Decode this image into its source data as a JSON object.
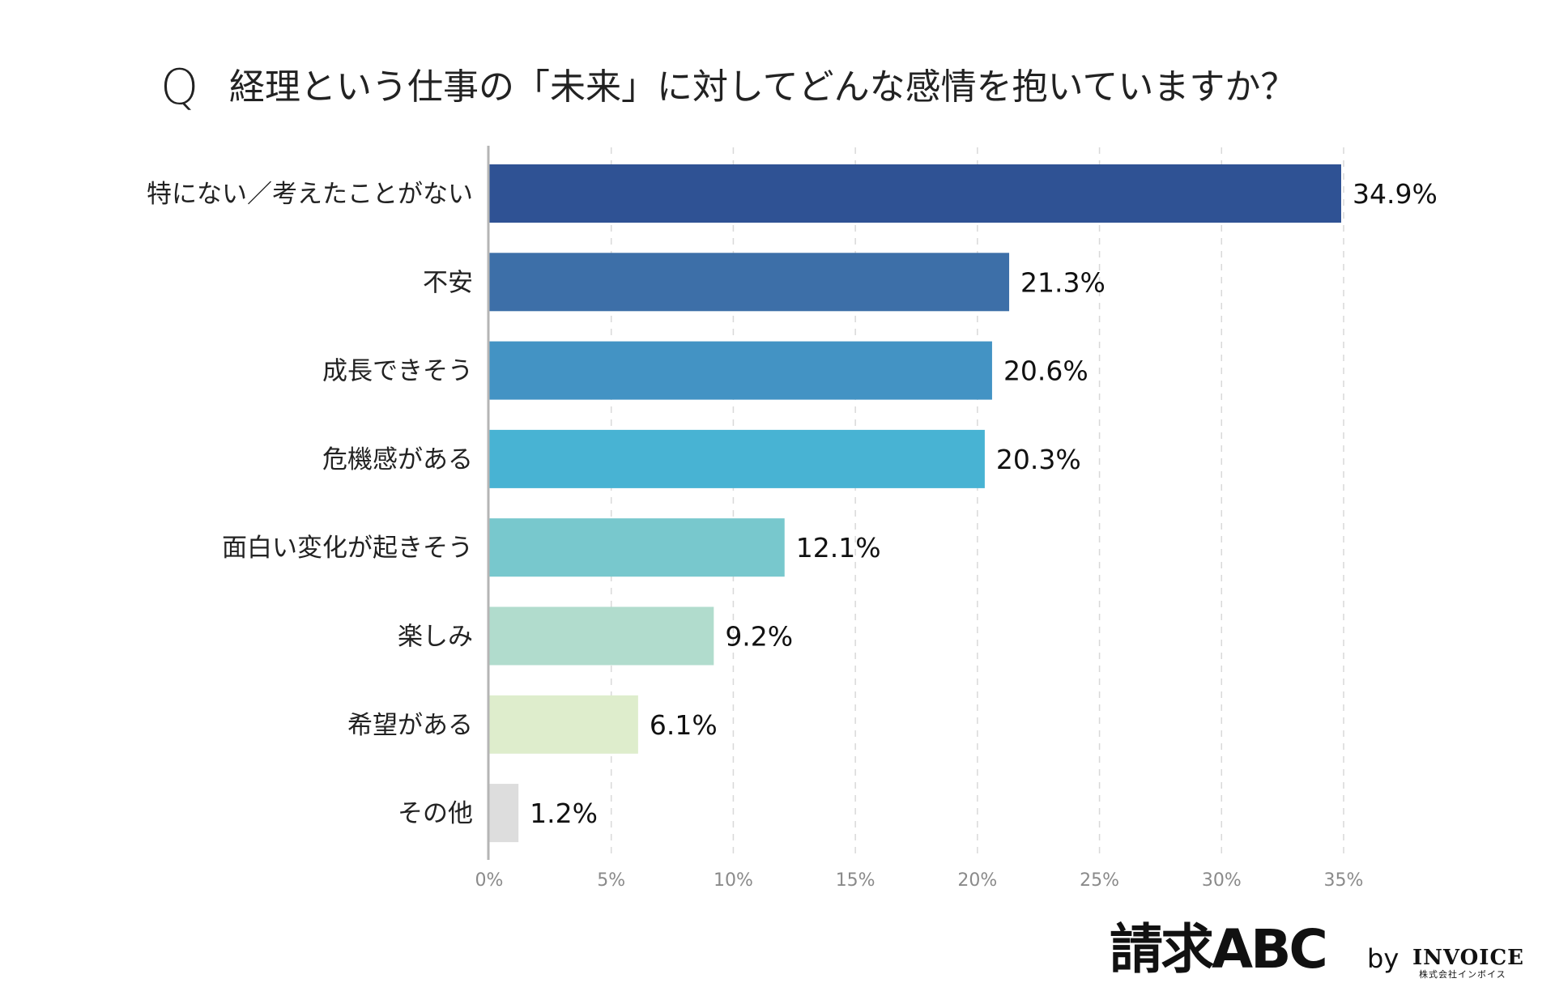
{
  "chart_data": {
    "type": "bar",
    "orientation": "horizontal",
    "title_prefix": "Q",
    "title": "経理という仕事の「未来」に対してどんな感情を抱いていますか？",
    "categories": [
      "特にない／考えたことがない",
      "不安",
      "成長できそう",
      "危機感がある",
      "面白い変化が起きそう",
      "楽しみ",
      "希望がある",
      "その他"
    ],
    "values": [
      34.9,
      21.3,
      20.6,
      20.3,
      12.1,
      9.2,
      6.1,
      1.2
    ],
    "value_labels": [
      "34.9%",
      "21.3%",
      "20.6%",
      "20.3%",
      "12.1%",
      "9.2%",
      "6.1%",
      "1.2%"
    ],
    "colors": [
      "#2f5294",
      "#3d6fa8",
      "#4393c4",
      "#48b3d3",
      "#78c8cd",
      "#b1dccd",
      "#deedcc",
      "#dddddd"
    ],
    "xlim": [
      0,
      35
    ],
    "xticks": [
      0,
      5,
      10,
      15,
      20,
      25,
      30,
      35
    ],
    "xtick_labels": [
      "0%",
      "5%",
      "10%",
      "15%",
      "20%",
      "25%",
      "30%",
      "35%"
    ],
    "grid": true,
    "xlabel": "",
    "ylabel": ""
  },
  "branding": {
    "logo_text": "請求ABC",
    "by_text": "by",
    "company_name": "INVOICE",
    "company_sub": "株式会社インボイス"
  }
}
